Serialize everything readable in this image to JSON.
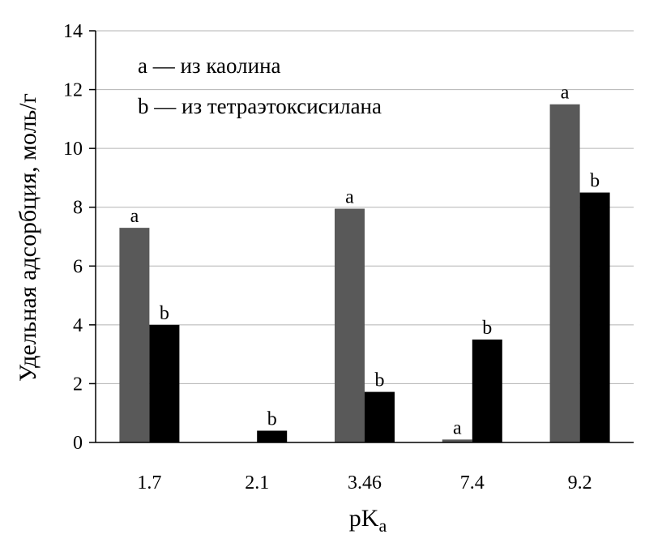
{
  "chart_data": {
    "type": "bar",
    "categories": [
      "1.7",
      "2.1",
      "3.46",
      "7.4",
      "9.2"
    ],
    "series": [
      {
        "label": "a",
        "legend_text": "a — из каолина",
        "color": "#595959",
        "values": [
          7.3,
          0,
          7.95,
          0.1,
          11.5
        ],
        "labels": [
          "a",
          "",
          "a",
          "a",
          "a"
        ]
      },
      {
        "label": "b",
        "legend_text": "b — из тетраэтоксисилана",
        "color": "#000000",
        "values": [
          4.0,
          0.4,
          1.72,
          3.5,
          8.5
        ],
        "labels": [
          "b",
          "b",
          "b",
          "b",
          "b"
        ]
      }
    ],
    "ylabel": "Удельная адсорбция, моль/г",
    "xlabel": {
      "main": "pK",
      "sub": "a"
    },
    "ylim": [
      0,
      14
    ],
    "yticks": [
      0,
      2,
      4,
      6,
      8,
      10,
      12,
      14
    ],
    "grid": true,
    "legend_position": "top-left"
  }
}
